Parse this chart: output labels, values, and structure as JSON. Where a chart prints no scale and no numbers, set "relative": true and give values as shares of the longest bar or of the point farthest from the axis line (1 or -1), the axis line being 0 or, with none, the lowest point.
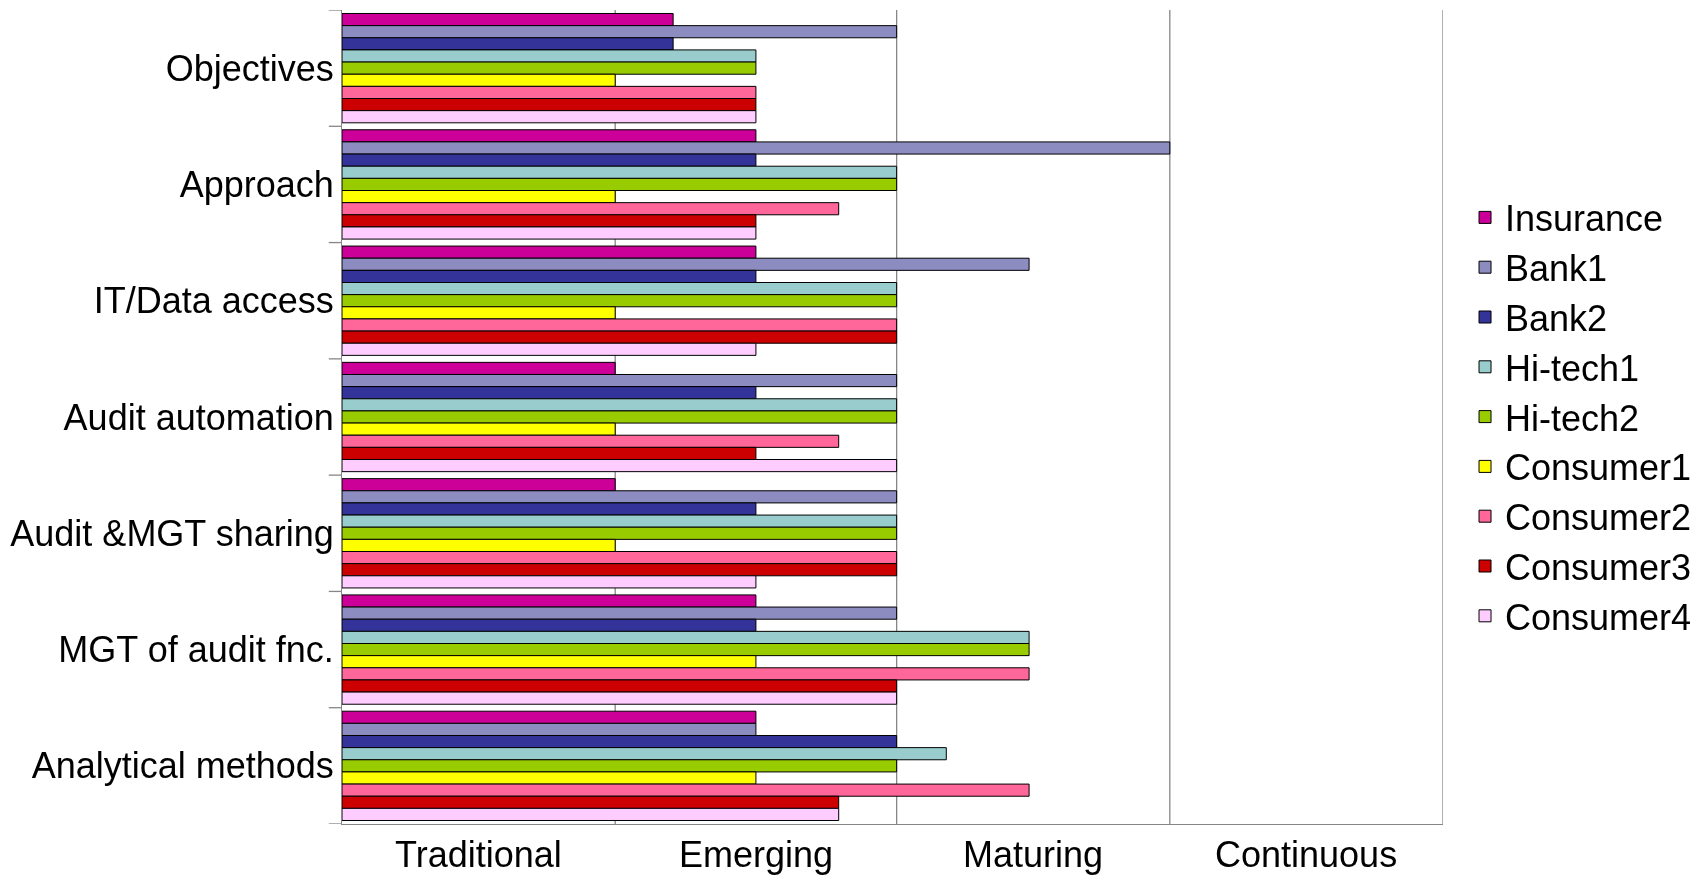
{
  "chart_data": {
    "type": "bar",
    "orientation": "horizontal",
    "relative": true,
    "categories": [
      "Objectives",
      "Approach",
      "IT/Data access",
      "Audit automation",
      "Audit &MGT sharing",
      "MGT of audit fnc.",
      "Analytical methods"
    ],
    "series": [
      {
        "name": "Insurance",
        "color": "#cc0099",
        "values": [
          0.4,
          0.5,
          0.5,
          0.33,
          0.33,
          0.5,
          0.5
        ]
      },
      {
        "name": "Bank1",
        "color": "#8c8cc0",
        "values": [
          0.67,
          1,
          0.83,
          0.67,
          0.67,
          0.67,
          0.5
        ]
      },
      {
        "name": "Bank2",
        "color": "#333399",
        "values": [
          0.4,
          0.5,
          0.5,
          0.5,
          0.5,
          0.5,
          0.67
        ]
      },
      {
        "name": "Hi-tech1",
        "color": "#99cccc",
        "values": [
          0.5,
          0.67,
          0.67,
          0.67,
          0.67,
          0.83,
          0.73
        ]
      },
      {
        "name": "Hi-tech2",
        "color": "#99cc00",
        "values": [
          0.5,
          0.67,
          0.67,
          0.67,
          0.67,
          0.83,
          0.67
        ]
      },
      {
        "name": "Consumer1",
        "color": "#ffff00",
        "values": [
          0.33,
          0.33,
          0.33,
          0.33,
          0.33,
          0.5,
          0.5
        ]
      },
      {
        "name": "Consumer2",
        "color": "#ff6699",
        "values": [
          0.5,
          0.6,
          0.67,
          0.6,
          0.67,
          0.83,
          0.83
        ]
      },
      {
        "name": "Consumer3",
        "color": "#cc0000",
        "values": [
          0.5,
          0.5,
          0.67,
          0.5,
          0.67,
          0.67,
          0.6
        ]
      },
      {
        "name": "Consumer4",
        "color": "#ffccff",
        "values": [
          0.5,
          0.5,
          0.5,
          0.67,
          0.5,
          0.67,
          0.6
        ]
      }
    ],
    "annotations": [
      "Traditional",
      "Emerging",
      "Maturing",
      "Continuous"
    ],
    "ref_lines": [
      {
        "axis": "x",
        "value": 0.33,
        "color": "#868686"
      },
      {
        "axis": "x",
        "value": 0.67,
        "color": "#868686"
      },
      {
        "axis": "x",
        "value": 1,
        "color": "#868686"
      },
      {
        "axis": "x",
        "value": 1.33,
        "color": "#868686"
      }
    ],
    "legend": "right"
  }
}
